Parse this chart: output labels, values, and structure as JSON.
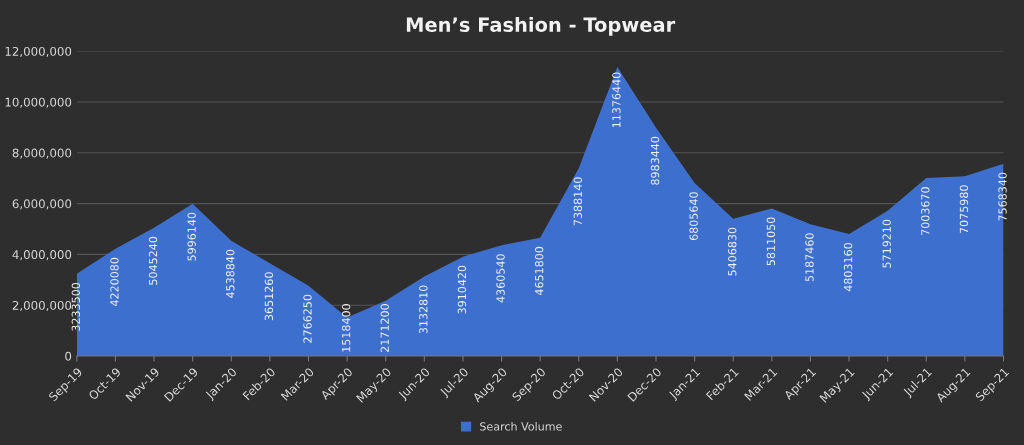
{
  "chart_data": {
    "type": "area",
    "title": "Men’s Fashion - Topwear",
    "categories": [
      "Sep-19",
      "Oct-19",
      "Nov-19",
      "Dec-19",
      "Jan-20",
      "Feb-20",
      "Mar-20",
      "Apr-20",
      "May-20",
      "Jun-20",
      "Jul-20",
      "Aug-20",
      "Sep-20",
      "Oct-20",
      "Nov-20",
      "Dec-20",
      "Jan-21",
      "Feb-21",
      "Mar-21",
      "Apr-21",
      "May-21",
      "Jun-21",
      "Jul-21",
      "Aug-21",
      "Sep-21"
    ],
    "series": [
      {
        "name": "Search Volume",
        "color": "#3d6fcf",
        "values": [
          3233500,
          4220080,
          5045240,
          5996140,
          4538840,
          3651260,
          2766250,
          1518400,
          2171200,
          3132810,
          3910420,
          4360540,
          4651800,
          7388140,
          11376440,
          8983440,
          6805640,
          5406830,
          5811050,
          5187460,
          4803160,
          5719210,
          7003670,
          7075980,
          7568340
        ]
      }
    ],
    "ylim": [
      0,
      12000000
    ],
    "yticks": [
      {
        "value": 0,
        "label": "0"
      },
      {
        "value": 2000000,
        "label": "2,000,000"
      },
      {
        "value": 4000000,
        "label": "4,000,000"
      },
      {
        "value": 6000000,
        "label": "6,000,000"
      },
      {
        "value": 8000000,
        "label": "8,000,000"
      },
      {
        "value": 10000000,
        "label": "10,000,000"
      },
      {
        "value": 12000000,
        "label": "12,000,000"
      }
    ],
    "grid": "y",
    "legend": "bottom",
    "data_labels": true
  }
}
